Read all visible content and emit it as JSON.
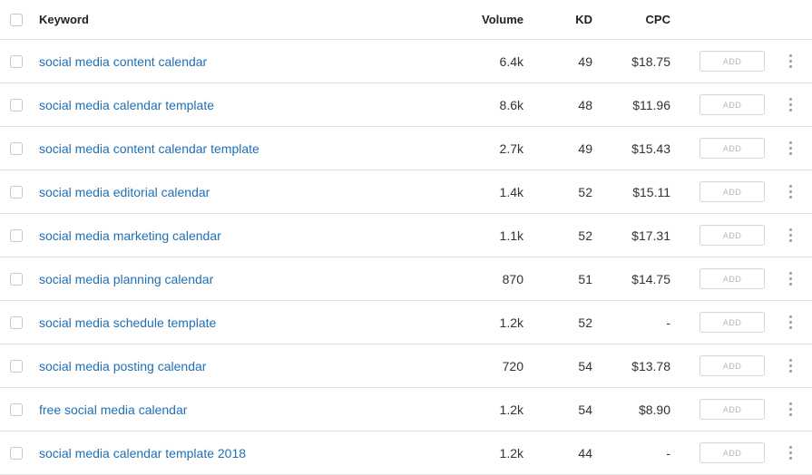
{
  "header": {
    "keyword": "Keyword",
    "volume": "Volume",
    "kd": "KD",
    "cpc": "CPC"
  },
  "add_label": "ADD",
  "rows": [
    {
      "keyword": "social media content calendar",
      "volume": "6.4k",
      "kd": "49",
      "cpc": "$18.75"
    },
    {
      "keyword": "social media calendar template",
      "volume": "8.6k",
      "kd": "48",
      "cpc": "$11.96"
    },
    {
      "keyword": "social media content calendar template",
      "volume": "2.7k",
      "kd": "49",
      "cpc": "$15.43"
    },
    {
      "keyword": "social media editorial calendar",
      "volume": "1.4k",
      "kd": "52",
      "cpc": "$15.11"
    },
    {
      "keyword": "social media marketing calendar",
      "volume": "1.1k",
      "kd": "52",
      "cpc": "$17.31"
    },
    {
      "keyword": "social media planning calendar",
      "volume": "870",
      "kd": "51",
      "cpc": "$14.75"
    },
    {
      "keyword": "social media schedule template",
      "volume": "1.2k",
      "kd": "52",
      "cpc": "-"
    },
    {
      "keyword": "social media posting calendar",
      "volume": "720",
      "kd": "54",
      "cpc": "$13.78"
    },
    {
      "keyword": "free social media calendar",
      "volume": "1.2k",
      "kd": "54",
      "cpc": "$8.90"
    },
    {
      "keyword": "social media calendar template 2018",
      "volume": "1.2k",
      "kd": "44",
      "cpc": "-"
    }
  ],
  "colors": {
    "link": "#1f6fb5",
    "border": "#e3e3e3",
    "add_text": "#b8b8b8"
  }
}
